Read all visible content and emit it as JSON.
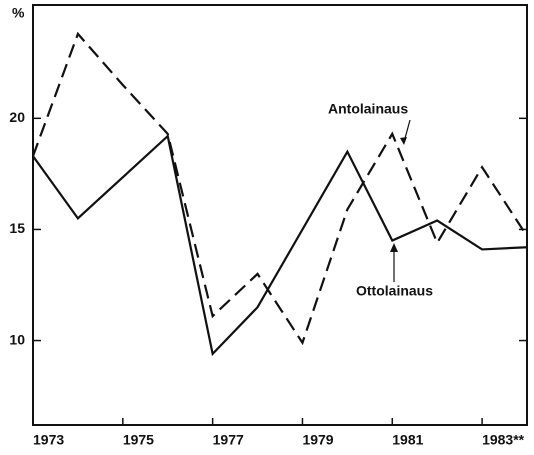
{
  "chart_data": {
    "type": "line",
    "y_label": "%",
    "xlim": [
      1973,
      1984
    ],
    "xticks": [
      1973,
      1975,
      1977,
      1979,
      1981,
      {
        "value": 1983,
        "label": "1983**"
      }
    ],
    "ylim": [
      6.2,
      25.1
    ],
    "yticks": [
      10,
      15,
      20
    ],
    "series": [
      {
        "name": "Ottolainaus",
        "color": "#111111",
        "dash": false,
        "x": [
          1973,
          1974,
          1976,
          1977,
          1978,
          1980,
          1981,
          1982,
          1983,
          1984
        ],
        "values": [
          18.3,
          15.5,
          19.2,
          9.4,
          11.5,
          18.5,
          14.5,
          15.4,
          14.1,
          14.2
        ]
      },
      {
        "name": "Antolainaus",
        "color": "#111111",
        "dash": true,
        "x": [
          1973,
          1974,
          1975,
          1976,
          1977,
          1978,
          1979,
          1980,
          1981,
          1982,
          1983,
          1984
        ],
        "values": [
          18.3,
          23.8,
          21.5,
          19.3,
          11.1,
          13.0,
          9.9,
          15.9,
          19.3,
          14.4,
          17.8,
          14.7
        ]
      }
    ]
  }
}
